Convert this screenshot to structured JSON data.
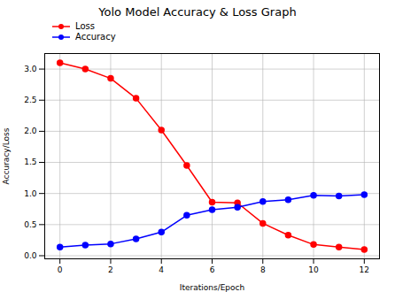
{
  "chart_data": {
    "type": "line",
    "title": "Yolo Model Accuracy & Loss Graph",
    "x_label": "Iterations/Epoch",
    "y_label": "Accuracy/Loss",
    "x": [
      0,
      1,
      2,
      3,
      4,
      5,
      6,
      7,
      8,
      9,
      10,
      11,
      12
    ],
    "series": [
      {
        "name": "Loss",
        "color": "#ff0000",
        "marker": "o",
        "line_style": "solid",
        "values": [
          3.1,
          3.0,
          2.85,
          2.53,
          2.02,
          1.45,
          0.86,
          0.85,
          0.52,
          0.33,
          0.18,
          0.14,
          0.1
        ]
      },
      {
        "name": "Accuracy",
        "color": "#0000ff",
        "marker": "o",
        "line_style": "solid",
        "values": [
          0.14,
          0.17,
          0.19,
          0.27,
          0.38,
          0.65,
          0.74,
          0.78,
          0.87,
          0.9,
          0.97,
          0.96,
          0.98
        ]
      }
    ],
    "xlim": [
      -0.6,
      12.6
    ],
    "xticks": [
      0,
      2,
      4,
      6,
      8,
      10,
      12
    ],
    "ylim": [
      -0.05,
      3.25
    ],
    "yticks": [
      {
        "value": 0,
        "label": "0.0"
      },
      {
        "value": 0.5,
        "label": "0.5"
      },
      {
        "value": 1,
        "label": "1.0"
      },
      {
        "value": 1.5,
        "label": "1.5"
      },
      {
        "value": 2,
        "label": "2.0"
      },
      {
        "value": 2.5,
        "label": "2.5"
      },
      {
        "value": 3,
        "label": "3.0"
      }
    ],
    "grid": true,
    "legend": "upper left"
  }
}
